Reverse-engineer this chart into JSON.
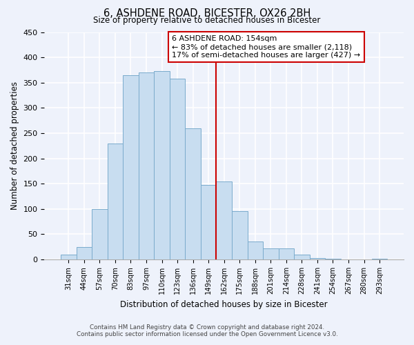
{
  "title": "6, ASHDENE ROAD, BICESTER, OX26 2BH",
  "subtitle": "Size of property relative to detached houses in Bicester",
  "xlabel": "Distribution of detached houses by size in Bicester",
  "ylabel": "Number of detached properties",
  "bar_labels": [
    "31sqm",
    "44sqm",
    "57sqm",
    "70sqm",
    "83sqm",
    "97sqm",
    "110sqm",
    "123sqm",
    "136sqm",
    "149sqm",
    "162sqm",
    "175sqm",
    "188sqm",
    "201sqm",
    "214sqm",
    "228sqm",
    "241sqm",
    "254sqm",
    "267sqm",
    "280sqm",
    "293sqm"
  ],
  "bar_heights": [
    10,
    25,
    100,
    230,
    365,
    370,
    373,
    358,
    260,
    148,
    155,
    96,
    35,
    22,
    22,
    10,
    3,
    2,
    0,
    0,
    2
  ],
  "bar_color": "#c8ddf0",
  "bar_edge_color": "#7aabcc",
  "vline_x": 9.5,
  "vline_color": "#cc0000",
  "ylim": [
    0,
    450
  ],
  "annotation_title": "6 ASHDENE ROAD: 154sqm",
  "annotation_line1": "← 83% of detached houses are smaller (2,118)",
  "annotation_line2": "17% of semi-detached houses are larger (427) →",
  "footnote1": "Contains HM Land Registry data © Crown copyright and database right 2024.",
  "footnote2": "Contains public sector information licensed under the Open Government Licence v3.0.",
  "background_color": "#eef2fb",
  "grid_color": "#ffffff",
  "yticks": [
    0,
    50,
    100,
    150,
    200,
    250,
    300,
    350,
    400,
    450
  ]
}
